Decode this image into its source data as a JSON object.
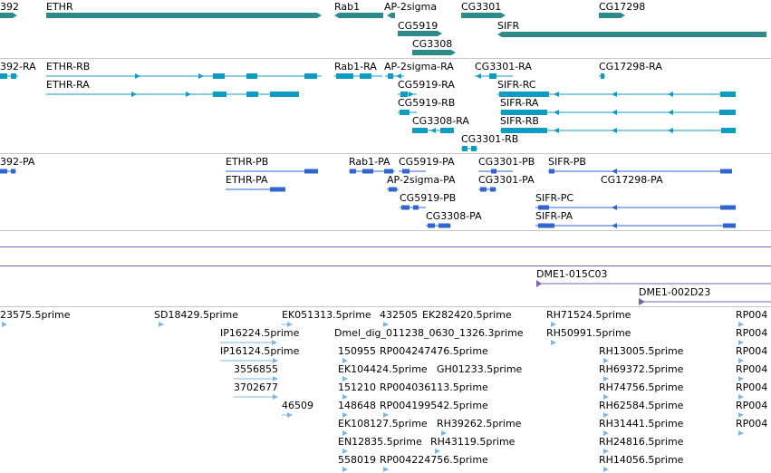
{
  "genes": [
    {
      "label": "392",
      "color": "#2e8b8b"
    },
    {
      "label": "ETHR",
      "color": "#2e8b8b"
    },
    {
      "label": "Rab1",
      "color": "#2e8b8b"
    },
    {
      "label": "AP-2sigma",
      "color": "#2e8b8b"
    },
    {
      "label": "CG3301",
      "color": "#2e8b8b"
    },
    {
      "label": "CG17298",
      "color": "#2e8b8b"
    },
    {
      "label": "CG5919",
      "color": "#2e8b8b"
    },
    {
      "label": "SIFR",
      "color": "#2e8b8b"
    },
    {
      "label": "CG3308",
      "color": "#2e8b8b"
    }
  ],
  "transcripts": [
    {
      "label": "392-RA"
    },
    {
      "label": "ETHR-RB"
    },
    {
      "label": "Rab1-RA"
    },
    {
      "label": "AP-2sigma-RA"
    },
    {
      "label": "CG3301-RA"
    },
    {
      "label": "CG17298-RA"
    },
    {
      "label": "ETHR-RA"
    },
    {
      "label": "CG5919-RA"
    },
    {
      "label": "SIFR-RC"
    },
    {
      "label": "CG5919-RB"
    },
    {
      "label": "SIFR-RA"
    },
    {
      "label": "CG3308-RA"
    },
    {
      "label": "SIFR-RB"
    },
    {
      "label": "CG3301-RB"
    }
  ],
  "proteins": [
    {
      "label": "392-PA"
    },
    {
      "label": "ETHR-PB"
    },
    {
      "label": "Rab1-PA"
    },
    {
      "label": "CG5919-PA"
    },
    {
      "label": "CG3301-PB"
    },
    {
      "label": "SIFR-PB"
    },
    {
      "label": "ETHR-PA"
    },
    {
      "label": "AP-2sigma-PA"
    },
    {
      "label": "CG3301-PA"
    },
    {
      "label": "CG17298-PA"
    },
    {
      "label": "CG5919-PB"
    },
    {
      "label": "SIFR-PC"
    },
    {
      "label": "CG3308-PA"
    },
    {
      "label": "SIFR-PA"
    }
  ],
  "clones": [
    {
      "label": "DME1-015C03"
    },
    {
      "label": "DME1-002D23"
    }
  ],
  "ests": [
    {
      "label": "23575.5prime"
    },
    {
      "label": "SD18429.5prime"
    },
    {
      "label": "EK051313.5prime"
    },
    {
      "label": "432505"
    },
    {
      "label": "EK282420.5prime"
    },
    {
      "label": "RH71524.5prime"
    },
    {
      "label": "RP004"
    },
    {
      "label": "IP16224.5prime"
    },
    {
      "label": "Dmel_dig_011238_0630_1326.3prime"
    },
    {
      "label": "RH50991.5prime"
    },
    {
      "label": "RP004"
    },
    {
      "label": "IP16124.5prime"
    },
    {
      "label": "150955"
    },
    {
      "label": "RP004247476.5prime"
    },
    {
      "label": "RH13005.5prime"
    },
    {
      "label": "RP004"
    },
    {
      "label": "3556855"
    },
    {
      "label": "EK104424.5prime"
    },
    {
      "label": "GH01233.5prime"
    },
    {
      "label": "RH69372.5prime"
    },
    {
      "label": "RP004"
    },
    {
      "label": "3702677"
    },
    {
      "label": "151210"
    },
    {
      "label": "RP004036113.5prime"
    },
    {
      "label": "RH74756.5prime"
    },
    {
      "label": "RP004"
    },
    {
      "label": "46509"
    },
    {
      "label": "148648"
    },
    {
      "label": "RP004199542.5prime"
    },
    {
      "label": "RH62584.5prime"
    },
    {
      "label": "RP004"
    },
    {
      "label": "EK108127.5prime"
    },
    {
      "label": "RH39262.5prime"
    },
    {
      "label": "RH31441.5prime"
    },
    {
      "label": "RP004"
    },
    {
      "label": "EN12835.5prime"
    },
    {
      "label": "RH43119.5prime"
    },
    {
      "label": "RH24816.5prime"
    },
    {
      "label": "558019"
    },
    {
      "label": "RP004224756.5prime"
    },
    {
      "label": "RH14056.5prime"
    }
  ],
  "colors": {
    "gene": "#2e8b8b",
    "transcript": "#0e9cc2",
    "protein": "#2f66cf",
    "clone": "#7e5fb0",
    "est": "#79b9e6"
  }
}
